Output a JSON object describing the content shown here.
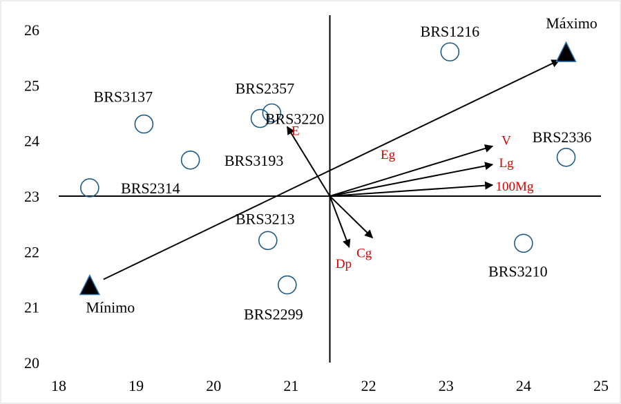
{
  "chart_data": {
    "type": "scatter",
    "xlim": [
      18,
      25
    ],
    "ylim": [
      20,
      26
    ],
    "x_ticks": [
      "18",
      "19",
      "20",
      "21",
      "22",
      "23",
      "24",
      "25"
    ],
    "y_ticks": [
      "20",
      "21",
      "22",
      "23",
      "24",
      "25",
      "26"
    ],
    "origin": {
      "x": 21.5,
      "y": 23
    },
    "genotypes": [
      {
        "label": "BRS1216",
        "x": 23.05,
        "y": 25.6
      },
      {
        "label": "BRS2357",
        "x": 20.75,
        "y": 24.5
      },
      {
        "label": "BRS3137",
        "x": 19.1,
        "y": 24.3
      },
      {
        "label": "BRS3220",
        "x": 20.6,
        "y": 24.4
      },
      {
        "label": "BRS3193",
        "x": 19.7,
        "y": 23.65
      },
      {
        "label": "BRS2336",
        "x": 24.55,
        "y": 23.7
      },
      {
        "label": "BRS2314",
        "x": 18.4,
        "y": 23.15
      },
      {
        "label": "BRS3213",
        "x": 20.7,
        "y": 22.2
      },
      {
        "label": "BRS3210",
        "x": 24.0,
        "y": 22.15
      },
      {
        "label": "BRS2299",
        "x": 20.95,
        "y": 21.4
      }
    ],
    "ideotypes": [
      {
        "label": "Máximo",
        "x": 24.55,
        "y": 25.6
      },
      {
        "label": "Mínimo",
        "x": 18.4,
        "y": 21.4
      }
    ],
    "vectors": [
      {
        "label": "E",
        "x": 20.95,
        "y": 24.25
      },
      {
        "label": "Eg",
        "x": 24.4,
        "y": 25.5
      },
      {
        "label": "V",
        "x": 23.6,
        "y": 23.9
      },
      {
        "label": "Lg",
        "x": 23.6,
        "y": 23.57
      },
      {
        "label": "100Mg",
        "x": 23.6,
        "y": 23.2
      },
      {
        "label": "Dp",
        "x": 21.75,
        "y": 22.08
      },
      {
        "label": "Cg",
        "x": 22.05,
        "y": 22.25
      }
    ],
    "colors": {
      "vector_label": "#e00000",
      "marker_edge": "#1f5a85"
    }
  }
}
